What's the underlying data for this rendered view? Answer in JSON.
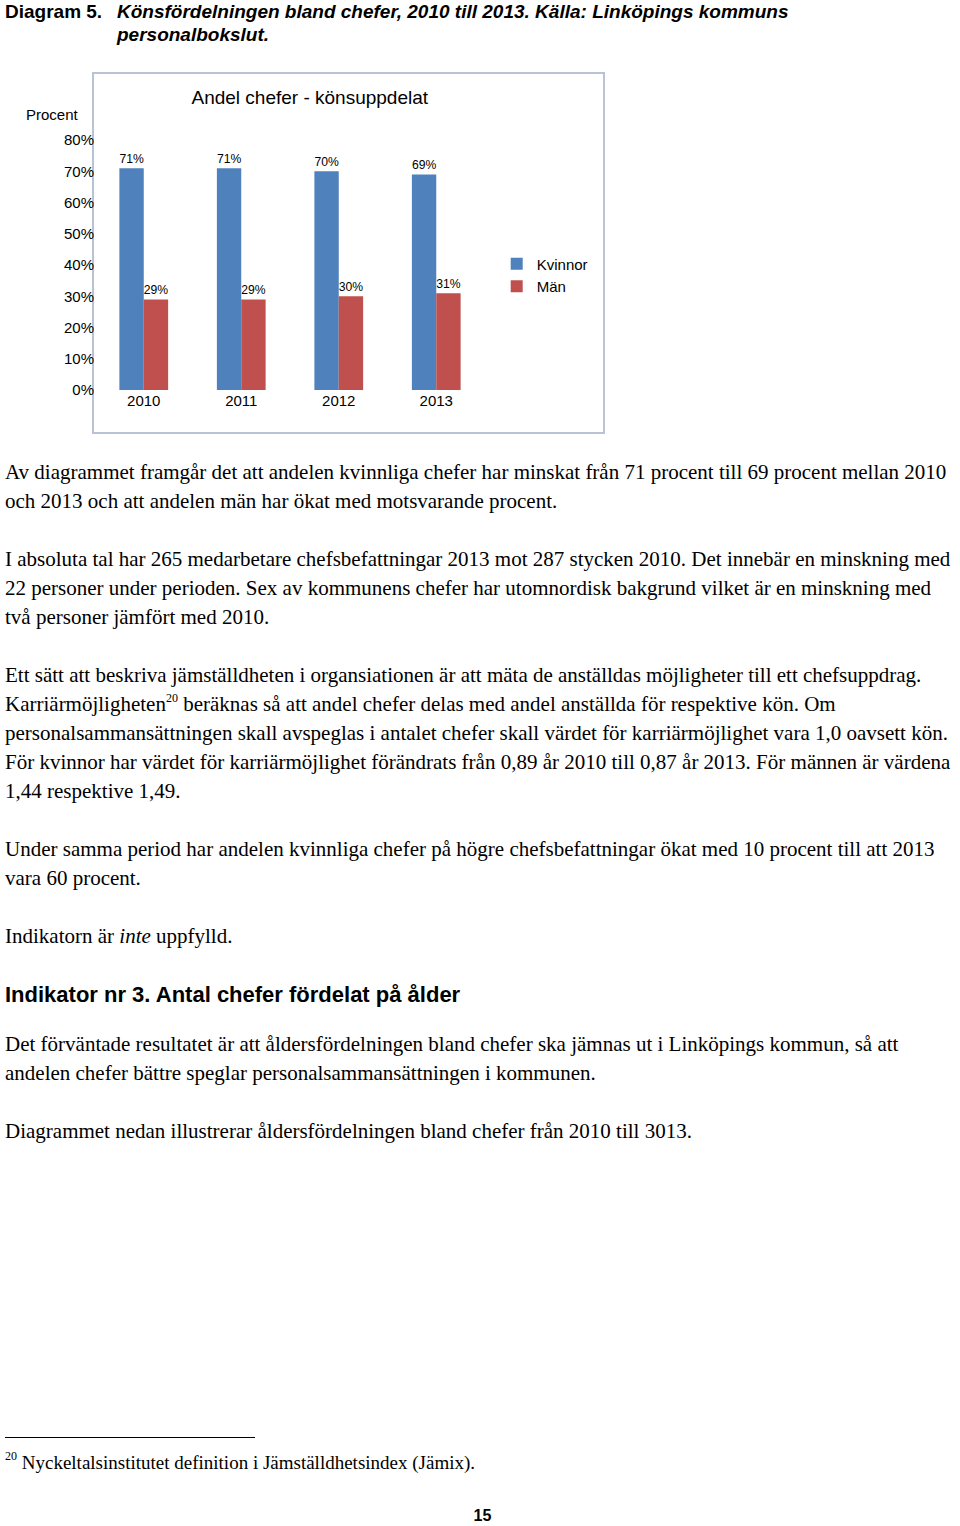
{
  "caption": {
    "label": "Diagram 5.",
    "text": "Könsfördelningen bland chefer, 2010 till 2013. Källa: Linköpings kommuns personalbokslut."
  },
  "chart_data": {
    "type": "bar",
    "title": "Andel chefer - könsuppdelat",
    "y_label": "Procent",
    "categories": [
      "2010",
      "2011",
      "2012",
      "2013"
    ],
    "series": [
      {
        "name": "Kvinnor",
        "color": "#4f81bd",
        "values": [
          71,
          71,
          70,
          69
        ],
        "value_labels": [
          "71%",
          "71%",
          "70%",
          "69%"
        ]
      },
      {
        "name": "Män",
        "color": "#c0504d",
        "values": [
          29,
          29,
          30,
          31
        ],
        "value_labels": [
          "29%",
          "29%",
          "30%",
          "31%"
        ]
      }
    ],
    "ylim": [
      0,
      80
    ],
    "yticks": [
      {
        "value": 0,
        "label": "0%"
      },
      {
        "value": 10,
        "label": "10%"
      },
      {
        "value": 20,
        "label": "20%"
      },
      {
        "value": 30,
        "label": "30%"
      },
      {
        "value": 40,
        "label": "40%"
      },
      {
        "value": 50,
        "label": "50%"
      },
      {
        "value": 60,
        "label": "60%"
      },
      {
        "value": 70,
        "label": "70%"
      },
      {
        "value": 80,
        "label": "80%"
      }
    ],
    "grid": false,
    "legend": "right",
    "data_labels": true
  },
  "body": [
    {
      "kind": "p",
      "runs": [
        {
          "text": "Av diagrammet framgår det att andelen kvinnliga chefer har minskat från 71 procent till 69 procent mellan 2010 och 2013 och att andelen män har ökat med motsvarande procent."
        }
      ]
    },
    {
      "kind": "p",
      "runs": [
        {
          "text": "I absoluta tal har 265 medarbetare chefsbefattningar 2013 mot 287 stycken 2010. Det innebär en minskning med 22 personer under perioden. Sex av kommunens chefer har utomnordisk bakgrund vilket är en minskning med två personer jämfört med 2010."
        }
      ]
    },
    {
      "kind": "p",
      "runs": [
        {
          "text": "Ett sätt att beskriva jämställdheten i organsiationen är att mäta de anställdas möjligheter till ett chefsuppdrag. Karriärmöjligheten"
        },
        {
          "text": "20",
          "style": "sup"
        },
        {
          "text": " beräknas så att andel chefer delas med andel anställda för respektive kön. Om personalsammansättningen skall avspeglas i antalet chefer skall värdet för karriärmöjlighet vara 1,0 oavsett kön. För kvinnor har värdet för karriärmöjlighet förändrats från 0,89 år 2010 till 0,87 år 2013. För männen är värdena 1,44 respektive 1,49."
        }
      ]
    },
    {
      "kind": "p",
      "runs": [
        {
          "text": "Under samma period har andelen kvinnliga chefer på högre chefsbefattningar ökat med 10 procent till att 2013 vara 60 procent."
        }
      ]
    },
    {
      "kind": "p",
      "runs": [
        {
          "text": "Indikatorn är "
        },
        {
          "text": "inte",
          "style": "italic"
        },
        {
          "text": " uppfylld."
        }
      ]
    },
    {
      "kind": "heading",
      "runs": [
        {
          "text": "Indikator nr 3. Antal chefer fördelat på ålder"
        }
      ]
    },
    {
      "kind": "p",
      "runs": [
        {
          "text": "Det förväntade resultatet är att åldersfördelningen bland chefer ska jämnas ut i Linköpings kommun, så att andelen chefer bättre speglar personalsammansättningen i kommunen."
        }
      ]
    },
    {
      "kind": "p",
      "runs": [
        {
          "text": "Diagrammet nedan illustrerar åldersfördelningen bland chefer från 2010 till 3013."
        }
      ]
    }
  ],
  "footnote": {
    "runs": [
      {
        "text": "20",
        "style": "sup"
      },
      {
        "text": " Nyckeltalsinstitutet definition i Jämställdhetsindex (Jämix)."
      }
    ]
  },
  "page_number": "15"
}
